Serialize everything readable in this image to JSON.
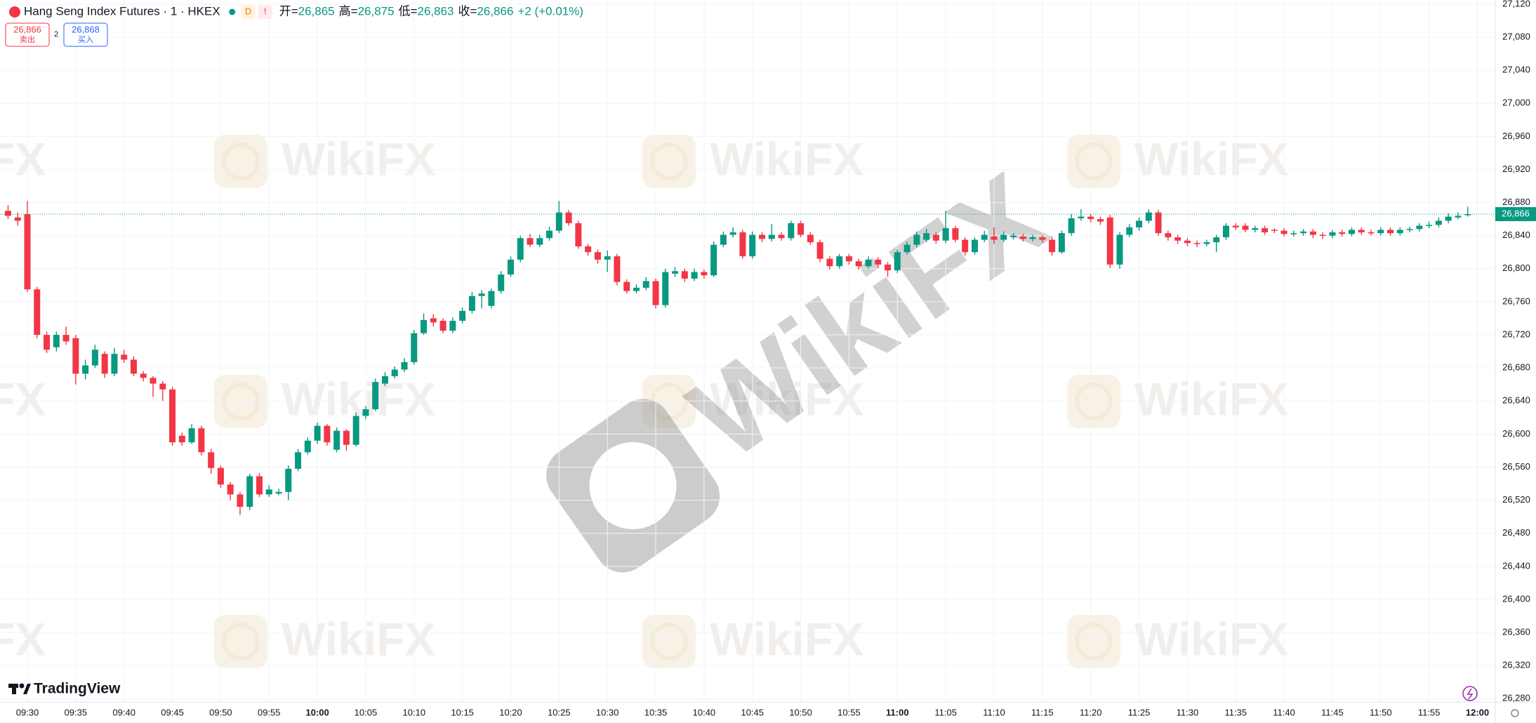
{
  "header": {
    "symbol_title": "Hang Seng Index Futures · 1 · HKEX",
    "badge": "D",
    "alert": "!",
    "ohlc": [
      {
        "label": "开=",
        "value": "26,865"
      },
      {
        "label": "高=",
        "value": "26,875"
      },
      {
        "label": "低=",
        "value": "26,863"
      },
      {
        "label": "收=",
        "value": "26,866"
      }
    ],
    "change": "+2 (+0.01%)"
  },
  "trade_buttons": {
    "sell_price": "26,866",
    "sell_label": "卖出",
    "spread": "2",
    "buy_price": "26,868",
    "buy_label": "买入"
  },
  "branding": {
    "logo_text": "TradingView",
    "watermark": "WikiFX"
  },
  "chart_data": {
    "type": "candlestick",
    "categories": [
      null,
      null,
      "09:30",
      null,
      null,
      null,
      null,
      "09:35",
      null,
      null,
      null,
      null,
      "09:40",
      null,
      null,
      null,
      null,
      "09:45",
      null,
      null,
      null,
      null,
      "09:50",
      null,
      null,
      null,
      null,
      "09:55",
      null,
      null,
      null,
      null,
      "10:00",
      null,
      null,
      null,
      null,
      "10:05",
      null,
      null,
      null,
      null,
      "10:10",
      null,
      null,
      null,
      null,
      "10:15",
      null,
      null,
      null,
      null,
      "10:20",
      null,
      null,
      null,
      null,
      "10:25",
      null,
      null,
      null,
      null,
      "10:30",
      null,
      null,
      null,
      null,
      "10:35",
      null,
      null,
      null,
      null,
      "10:40",
      null,
      null,
      null,
      null,
      "10:45",
      null,
      null,
      null,
      null,
      "10:50",
      null,
      null,
      null,
      null,
      "10:55",
      null,
      null,
      null,
      null,
      "11:00",
      null,
      null,
      null,
      null,
      "11:05",
      null,
      null,
      null,
      null,
      "11:10",
      null,
      null,
      null,
      null,
      "11:15",
      null,
      null,
      null,
      null,
      "11:20",
      null,
      null,
      null,
      null,
      "11:25",
      null,
      null,
      null,
      null,
      "11:30",
      null,
      null,
      null,
      null,
      "11:35",
      null,
      null,
      null,
      null,
      "11:40",
      null,
      null,
      null,
      null,
      "11:45",
      null,
      null,
      null,
      null,
      "11:50",
      null,
      null,
      null,
      null,
      "11:55",
      null,
      null,
      null,
      null,
      "12:00"
    ],
    "open": [
      26870,
      26862,
      26866,
      26775,
      26720,
      26705,
      26720,
      26716,
      26673,
      26683,
      26697,
      26673,
      26696,
      26690,
      26673,
      26668,
      26661,
      26654,
      26598,
      26590,
      26607,
      26578,
      26559,
      26539,
      26527,
      26512,
      26549,
      26527,
      26528,
      26530,
      26558,
      26578,
      26592,
      26610,
      26581,
      26604,
      26587,
      26622,
      26630,
      26661,
      26670,
      26678,
      26687,
      26722,
      26740,
      26737,
      26725,
      26737,
      26749,
      26767,
      26755,
      26773,
      26793,
      26811,
      26837,
      26829,
      26837,
      26846,
      26868,
      26855,
      26827,
      26820,
      26811,
      26815,
      26784,
      26773,
      26777,
      26785,
      26756,
      26794,
      26797,
      26788,
      26796,
      26792,
      26829,
      26841,
      26844,
      26815,
      26841,
      26836,
      26841,
      26837,
      26855,
      26841,
      26832,
      26812,
      26803,
      26815,
      26809,
      26803,
      26811,
      26805,
      26798,
      26820,
      26829,
      26835,
      26841,
      26834,
      26849,
      26835,
      26820,
      26835,
      26839,
      26835,
      26838,
      26839,
      26836,
      26838,
      26835,
      26820,
      26843,
      26861,
      26863,
      26860,
      26862,
      26805,
      26841,
      26850,
      26858,
      26868,
      26843,
      26838,
      26834,
      26831,
      26830,
      26832,
      26838,
      26852,
      26852,
      26847,
      26849,
      26847,
      26846,
      26842,
      26843,
      26845,
      26841,
      26840,
      26844,
      26842,
      26847,
      26844,
      26843,
      26847,
      26843,
      26847,
      26848,
      26852,
      26853,
      26858,
      26862,
      26865,
      null
    ],
    "high": [
      26877,
      26868,
      26882,
      26778,
      26724,
      26724,
      26730,
      26720,
      26690,
      26708,
      26700,
      26704,
      26702,
      26694,
      26676,
      26670,
      26664,
      26657,
      26602,
      26612,
      26610,
      26582,
      26562,
      26542,
      26530,
      26552,
      26553,
      26538,
      26534,
      26562,
      26582,
      26596,
      26614,
      26612,
      26608,
      26606,
      26626,
      26634,
      26667,
      26675,
      26682,
      26692,
      26726,
      26746,
      26745,
      26740,
      26741,
      26753,
      26772,
      26774,
      26776,
      26797,
      26815,
      26840,
      26842,
      26841,
      26851,
      26882,
      26871,
      26858,
      26830,
      26823,
      26822,
      26818,
      26787,
      26781,
      26790,
      26788,
      26800,
      26802,
      26800,
      26800,
      26799,
      26833,
      26845,
      26850,
      26847,
      26845,
      26844,
      26854,
      26844,
      26858,
      26858,
      26844,
      26835,
      26815,
      26818,
      26818,
      26812,
      26815,
      26814,
      26808,
      26823,
      26833,
      26845,
      26848,
      26844,
      26870,
      26852,
      26838,
      26838,
      26846,
      26850,
      26845,
      26843,
      26842,
      26841,
      26841,
      26838,
      26846,
      26866,
      26872,
      26866,
      26863,
      26865,
      26844,
      26854,
      26862,
      26872,
      26871,
      26846,
      26841,
      26837,
      26834,
      26835,
      26841,
      26855,
      26855,
      26855,
      26852,
      26852,
      26849,
      26849,
      26846,
      26848,
      26848,
      26844,
      26847,
      26847,
      26850,
      26850,
      26847,
      26850,
      26850,
      26850,
      26851,
      26855,
      26857,
      26862,
      26867,
      26868,
      26875,
      null
    ],
    "low": [
      26860,
      26852,
      26772,
      26716,
      26698,
      26700,
      26708,
      26660,
      26666,
      26680,
      26668,
      26670,
      26686,
      26670,
      26664,
      26645,
      26640,
      26586,
      26586,
      26588,
      26574,
      26552,
      26535,
      26520,
      26502,
      26508,
      26524,
      26524,
      26526,
      26520,
      26555,
      26575,
      26588,
      26586,
      26578,
      26580,
      26585,
      26618,
      26628,
      26658,
      26667,
      26675,
      26684,
      26720,
      26730,
      26722,
      26722,
      26734,
      26746,
      26752,
      26752,
      26770,
      26790,
      26808,
      26826,
      26826,
      26834,
      26843,
      26852,
      26824,
      26816,
      26806,
      26796,
      26780,
      26770,
      26770,
      26774,
      26752,
      26753,
      26790,
      26784,
      26785,
      26788,
      26790,
      26826,
      26838,
      26812,
      26812,
      26832,
      26833,
      26834,
      26834,
      26838,
      26829,
      26808,
      26799,
      26800,
      26805,
      26799,
      26800,
      26801,
      26790,
      26795,
      26817,
      26826,
      26832,
      26830,
      26831,
      26832,
      26816,
      26817,
      26832,
      26830,
      26832,
      26835,
      26833,
      26833,
      26831,
      26816,
      26818,
      26840,
      26858,
      26856,
      26853,
      26801,
      26800,
      26838,
      26846,
      26855,
      26840,
      26834,
      26830,
      26827,
      26826,
      26827,
      26820,
      26835,
      26847,
      26844,
      26844,
      26841,
      26843,
      26839,
      26839,
      26840,
      26837,
      26836,
      26837,
      26839,
      26839,
      26841,
      26840,
      26840,
      26840,
      26840,
      26844,
      26845,
      26849,
      26850,
      26855,
      26860,
      26863,
      null
    ],
    "close": [
      26864,
      26858,
      26775,
      26720,
      26702,
      26720,
      26712,
      26673,
      26683,
      26702,
      26673,
      26697,
      26690,
      26673,
      26668,
      26661,
      26654,
      26590,
      26590,
      26607,
      26578,
      26559,
      26539,
      26527,
      26512,
      26549,
      26527,
      26533,
      26530,
      26558,
      26578,
      26592,
      26610,
      26590,
      26604,
      26587,
      26622,
      26630,
      26663,
      26670,
      26678,
      26687,
      26722,
      26738,
      26735,
      26725,
      26737,
      26749,
      26767,
      26770,
      26773,
      26793,
      26811,
      26837,
      26829,
      26837,
      26846,
      26868,
      26855,
      26827,
      26820,
      26811,
      26815,
      26784,
      26773,
      26777,
      26785,
      26756,
      26796,
      26797,
      26788,
      26796,
      26792,
      26829,
      26841,
      26844,
      26815,
      26841,
      26836,
      26841,
      26837,
      26855,
      26841,
      26832,
      26812,
      26803,
      26815,
      26809,
      26803,
      26811,
      26805,
      26798,
      26820,
      26829,
      26841,
      26843,
      26834,
      26849,
      26835,
      26820,
      26835,
      26841,
      26835,
      26841,
      26840,
      26836,
      26838,
      26835,
      26820,
      26843,
      26861,
      26863,
      26860,
      26857,
      26805,
      26841,
      26850,
      26858,
      26868,
      26843,
      26838,
      26834,
      26831,
      26830,
      26832,
      26838,
      26852,
      26850,
      26847,
      26849,
      26844,
      26846,
      26842,
      26843,
      26845,
      26841,
      26840,
      26844,
      26842,
      26847,
      26844,
      26843,
      26847,
      26843,
      26847,
      26848,
      26852,
      26853,
      26858,
      26863,
      26864,
      26866,
      null
    ],
    "up_color": "#089981",
    "down_color": "#f23645",
    "ylim": [
      26276,
      27125
    ],
    "yticks": [
      {
        "value": 26280,
        "label": "26,280"
      },
      {
        "value": 26320,
        "label": "26,320"
      },
      {
        "value": 26360,
        "label": "26,360"
      },
      {
        "value": 26400,
        "label": "26,400"
      },
      {
        "value": 26440,
        "label": "26,440"
      },
      {
        "value": 26480,
        "label": "26,480"
      },
      {
        "value": 26520,
        "label": "26,520"
      },
      {
        "value": 26560,
        "label": "26,560"
      },
      {
        "value": 26600,
        "label": "26,600"
      },
      {
        "value": 26640,
        "label": "26,640"
      },
      {
        "value": 26680,
        "label": "26,680"
      },
      {
        "value": 26720,
        "label": "26,720"
      },
      {
        "value": 26760,
        "label": "26,760"
      },
      {
        "value": 26800,
        "label": "26,800"
      },
      {
        "value": 26840,
        "label": "26,840"
      },
      {
        "value": 26880,
        "label": "26,880"
      },
      {
        "value": 26920,
        "label": "26,920"
      },
      {
        "value": 26960,
        "label": "26,960"
      },
      {
        "value": 27000,
        "label": "27,000"
      },
      {
        "value": 27040,
        "label": "27,040"
      },
      {
        "value": 27080,
        "label": "27,080"
      },
      {
        "value": 27120,
        "label": "27,120"
      }
    ],
    "grid": true,
    "last_price": {
      "value": 26866,
      "label": "26,866"
    }
  }
}
